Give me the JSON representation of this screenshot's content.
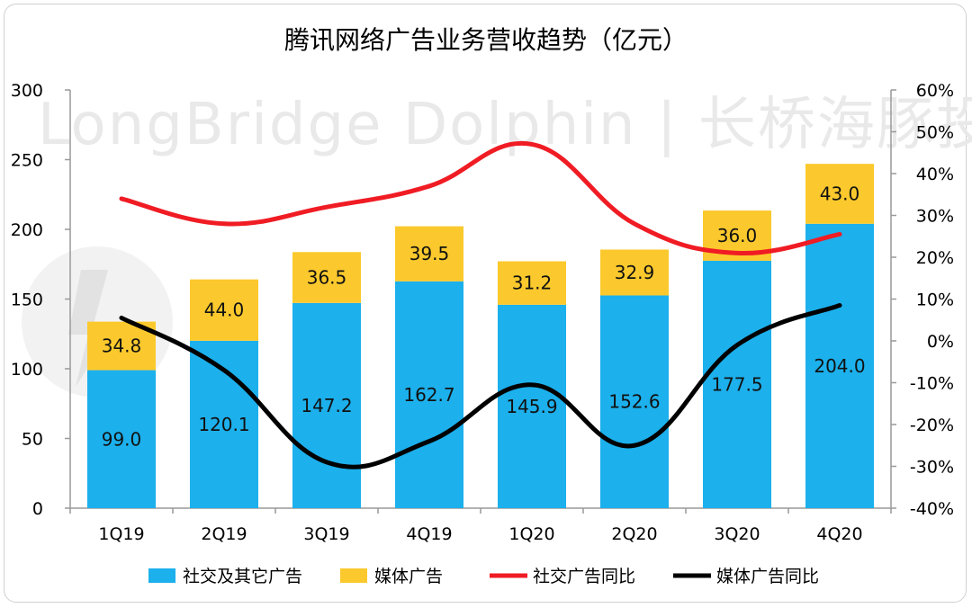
{
  "colors": {
    "social": "#1cb0ec",
    "media": "#fbc92d",
    "social_yoy": "#f01c24",
    "media_yoy": "#000000"
  },
  "watermark": "LongBridge Dolphin | 长桥海豚投研",
  "chart_data": {
    "type": "bar",
    "stacked": true,
    "title": "腾讯网络广告业务营收趋势（亿元）",
    "categories": [
      "1Q19",
      "2Q19",
      "3Q19",
      "4Q19",
      "1Q20",
      "2Q20",
      "3Q20",
      "4Q20"
    ],
    "ylim": [
      0,
      300
    ],
    "yticks": [
      "0",
      "50",
      "100",
      "150",
      "200",
      "250",
      "300"
    ],
    "y2lim": [
      -40,
      60
    ],
    "y2ticks": [
      "-40%",
      "-30%",
      "-20%",
      "-10%",
      "0%",
      "10%",
      "20%",
      "30%",
      "40%",
      "50%",
      "60%"
    ],
    "series": [
      {
        "name": "社交及其它广告",
        "type": "bar",
        "values": [
          99.0,
          120.1,
          147.2,
          162.7,
          145.9,
          152.6,
          177.5,
          204.0
        ],
        "labels": [
          "99.0",
          "120.1",
          "147.2",
          "162.7",
          "145.9",
          "152.6",
          "177.5",
          "204.0"
        ]
      },
      {
        "name": "媒体广告",
        "type": "bar",
        "values": [
          34.8,
          44.0,
          36.5,
          39.5,
          31.2,
          32.9,
          36.0,
          43.0
        ],
        "labels": [
          "34.8",
          "44.0",
          "36.5",
          "39.5",
          "31.2",
          "32.9",
          "36.0",
          "43.0"
        ]
      },
      {
        "name": "社交广告同比",
        "type": "line",
        "axis": "right",
        "values": [
          34,
          28,
          32,
          37,
          47,
          28,
          21,
          25.5
        ]
      },
      {
        "name": "媒体广告同比",
        "type": "line",
        "axis": "right",
        "values": [
          5.5,
          -7,
          -29,
          -24,
          -10.5,
          -25,
          -1,
          8.5
        ]
      }
    ],
    "legend_position": "bottom"
  }
}
